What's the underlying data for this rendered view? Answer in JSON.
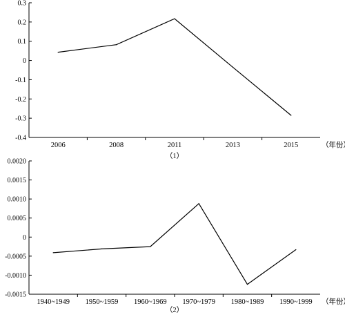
{
  "chart_data": [
    {
      "type": "line",
      "caption": "（1）",
      "xlabel": "（年份）",
      "ylabel": "",
      "categories": [
        "2006",
        "2008",
        "2011",
        "2013",
        "2015"
      ],
      "values": [
        0.043,
        0.082,
        0.217,
        -0.035,
        -0.285
      ],
      "ylim": [
        -0.4,
        0.3
      ],
      "yticks": [
        "0.3",
        "0.2",
        "0.1",
        "0",
        "-0.1",
        "-0.2",
        "-0.3",
        "-0.4"
      ],
      "ytick_values": [
        0.3,
        0.2,
        0.1,
        0,
        -0.1,
        -0.2,
        -0.3,
        -0.4
      ],
      "grid": false
    },
    {
      "type": "line",
      "caption": "（2）",
      "xlabel": "（年份）",
      "ylabel": "",
      "categories": [
        "1940~1949",
        "1950~1959",
        "1960~1969",
        "1970~1979",
        "1980~1989",
        "1990~1999"
      ],
      "values": [
        -0.00041,
        -0.00031,
        -0.00025,
        0.00088,
        -0.00124,
        -0.00033
      ],
      "ylim": [
        -0.0015,
        0.002
      ],
      "yticks": [
        "0.0020",
        "0.0015",
        "0.0010",
        "0.0005",
        "0",
        "-0.0005",
        "-0.0010",
        "-0.0015"
      ],
      "ytick_values": [
        0.002,
        0.0015,
        0.001,
        0.0005,
        0,
        -0.0005,
        -0.001,
        -0.0015
      ],
      "grid": false
    }
  ]
}
